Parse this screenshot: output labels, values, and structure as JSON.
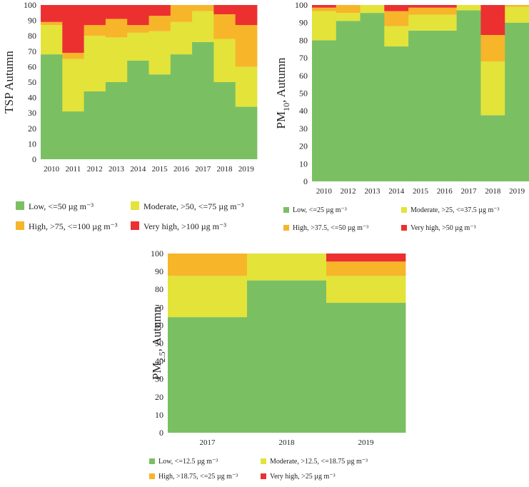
{
  "colors": {
    "low": "#7bbf63",
    "moderate": "#e3e33a",
    "high": "#f7b52a",
    "very_high": "#ec3030"
  },
  "chart_data": [
    {
      "type": "bar",
      "stacked": true,
      "ylabel": "TSP Autumn",
      "ylim": [
        0,
        100
      ],
      "yticks": [
        0,
        10,
        20,
        30,
        40,
        50,
        60,
        70,
        80,
        90,
        100
      ],
      "categories": [
        "2010",
        "2011",
        "2012",
        "2013",
        "2014",
        "2015",
        "2016",
        "2017",
        "2018",
        "2019"
      ],
      "legend": {
        "low": "Low, <=50 µg m⁻³",
        "moderate": "Moderate, >50, <=75 µg m⁻³",
        "high": "High, >75, <=100 µg m⁻³",
        "very_high": "Very high, >100 µg m⁻³"
      },
      "series": [
        {
          "name": "Low, <=50 µg m⁻³",
          "key": "low",
          "values": [
            68,
            31,
            44,
            50,
            64,
            55,
            68,
            76,
            50,
            34
          ]
        },
        {
          "name": "Moderate, >50, <=75 µg m⁻³",
          "key": "moderate",
          "values": [
            19,
            34,
            36,
            29,
            18,
            28,
            21,
            20,
            28,
            26
          ]
        },
        {
          "name": "High, >75, <=100 µg m⁻³",
          "key": "high",
          "values": [
            2,
            4,
            7,
            12,
            5,
            10,
            11,
            4,
            16,
            27
          ]
        },
        {
          "name": "Very high, >100 µg m⁻³",
          "key": "very_high",
          "values": [
            11,
            31,
            13,
            9,
            13,
            7,
            0,
            0,
            6,
            13
          ]
        }
      ]
    },
    {
      "type": "bar",
      "stacked": true,
      "ylabel": "PM",
      "ylabel_sub": "10",
      "ylabel_suffix": ", Autumn",
      "ylim": [
        0,
        100
      ],
      "yticks": [
        0,
        10,
        20,
        30,
        40,
        50,
        60,
        70,
        80,
        90,
        100
      ],
      "categories": [
        "2010",
        "2012",
        "2013",
        "2014",
        "2015",
        "2016",
        "2017",
        "2018",
        "2019"
      ],
      "legend": {
        "low": "Low, <=25 µg m⁻³",
        "moderate": "Moderate, >25, <=37.5 µg m⁻³",
        "high": "High, >37.5, <=50 µg m⁻³",
        "very_high": "Very high, >50 µg m⁻³"
      },
      "series": [
        {
          "name": "Low, <=25 µg m⁻³",
          "key": "low",
          "values": [
            80,
            91,
            95.5,
            76.5,
            85.5,
            85.5,
            97,
            37.5,
            90
          ]
        },
        {
          "name": "Moderate, >25, <=37.5 µg m⁻³",
          "key": "moderate",
          "values": [
            16.5,
            4.5,
            4.5,
            11.5,
            9,
            9,
            3,
            30.5,
            9
          ]
        },
        {
          "name": "High, >37.5, <=50 µg m⁻³",
          "key": "high",
          "values": [
            2,
            4.5,
            0,
            8.5,
            4,
            4,
            0,
            15,
            1
          ]
        },
        {
          "name": "Very high, >50 µg m⁻³",
          "key": "very_high",
          "values": [
            1.5,
            0,
            0,
            3.5,
            1.5,
            1.5,
            0,
            17,
            0
          ]
        }
      ]
    },
    {
      "type": "bar",
      "stacked": true,
      "ylabel": "PM",
      "ylabel_sub": "2.5",
      "ylabel_suffix": ", Autumn",
      "ylim": [
        0,
        100
      ],
      "yticks": [
        0,
        10,
        20,
        30,
        40,
        50,
        60,
        70,
        80,
        90,
        100
      ],
      "categories": [
        "2017",
        "2018",
        "2019"
      ],
      "legend": {
        "low": "Low, <=12.5 µg m⁻³",
        "moderate": "Moderate, >12.5, <=18.75 µg m⁻³",
        "high": "High, >18.75, <=25 µg m⁻³",
        "very_high": "Very high, >25 µg m⁻³"
      },
      "series": [
        {
          "name": "Low, <=12.5 µg m⁻³",
          "key": "low",
          "values": [
            64.5,
            85,
            72.5
          ]
        },
        {
          "name": "Moderate, >12.5, <=18.75 µg m⁻³",
          "key": "moderate",
          "values": [
            23,
            15,
            15
          ]
        },
        {
          "name": "High, >18.75, <=25 µg m⁻³",
          "key": "high",
          "values": [
            12.5,
            0,
            8
          ]
        },
        {
          "name": "Very high, >25 µg m⁻³",
          "key": "very_high",
          "values": [
            0,
            0,
            4.5
          ]
        }
      ]
    }
  ]
}
